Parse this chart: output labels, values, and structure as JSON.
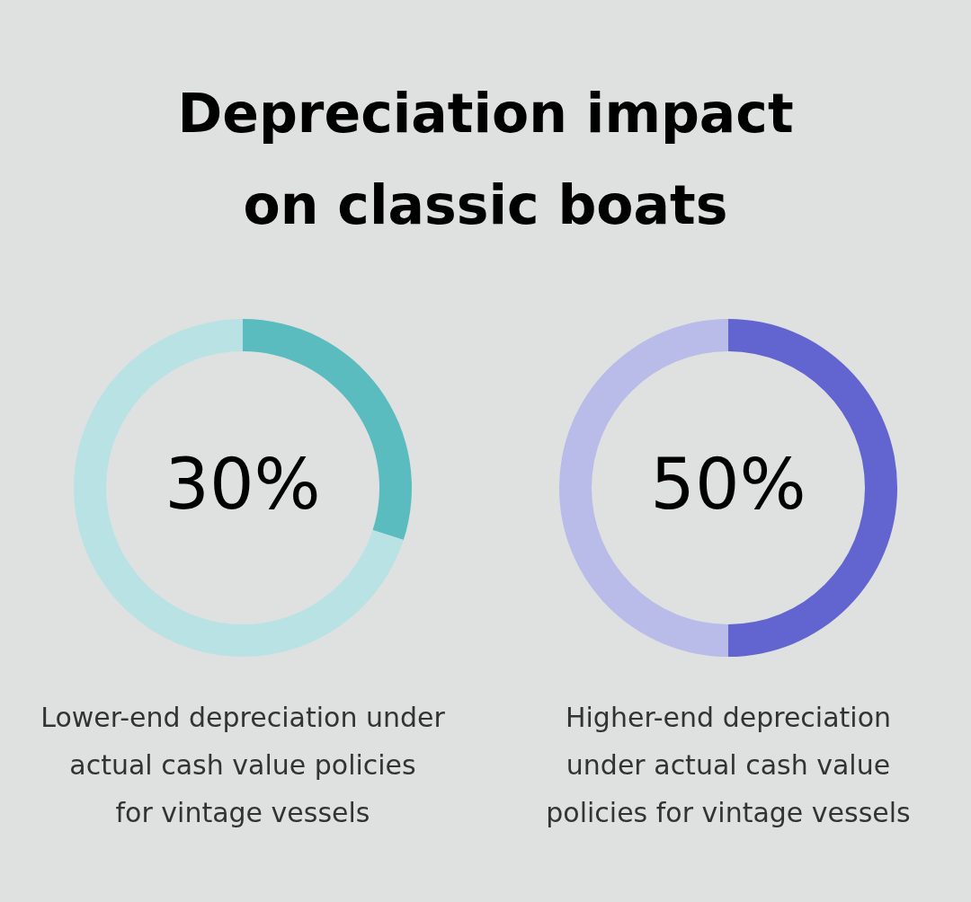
{
  "chart_data": [
    {
      "type": "other",
      "title": "Depreciation impact on classic boats"
    },
    {
      "type": "donut",
      "categories": [
        null,
        null
      ],
      "values": [
        30,
        70
      ],
      "colors": [
        "#5bbcbf",
        "#b8e2e4"
      ],
      "value_labels": [
        "30%",
        null
      ],
      "annotations": [
        "Lower-end depreciation under actual cash value policies for vintage vessels"
      ]
    },
    {
      "type": "donut",
      "categories": [
        null,
        null
      ],
      "values": [
        50,
        50
      ],
      "colors": [
        "#6264d0",
        "#b9bbe9"
      ],
      "value_labels": [
        "50%",
        null
      ],
      "annotations": [
        "Higher-end depreciation under actual cash value policies for vintage vessels"
      ]
    }
  ]
}
